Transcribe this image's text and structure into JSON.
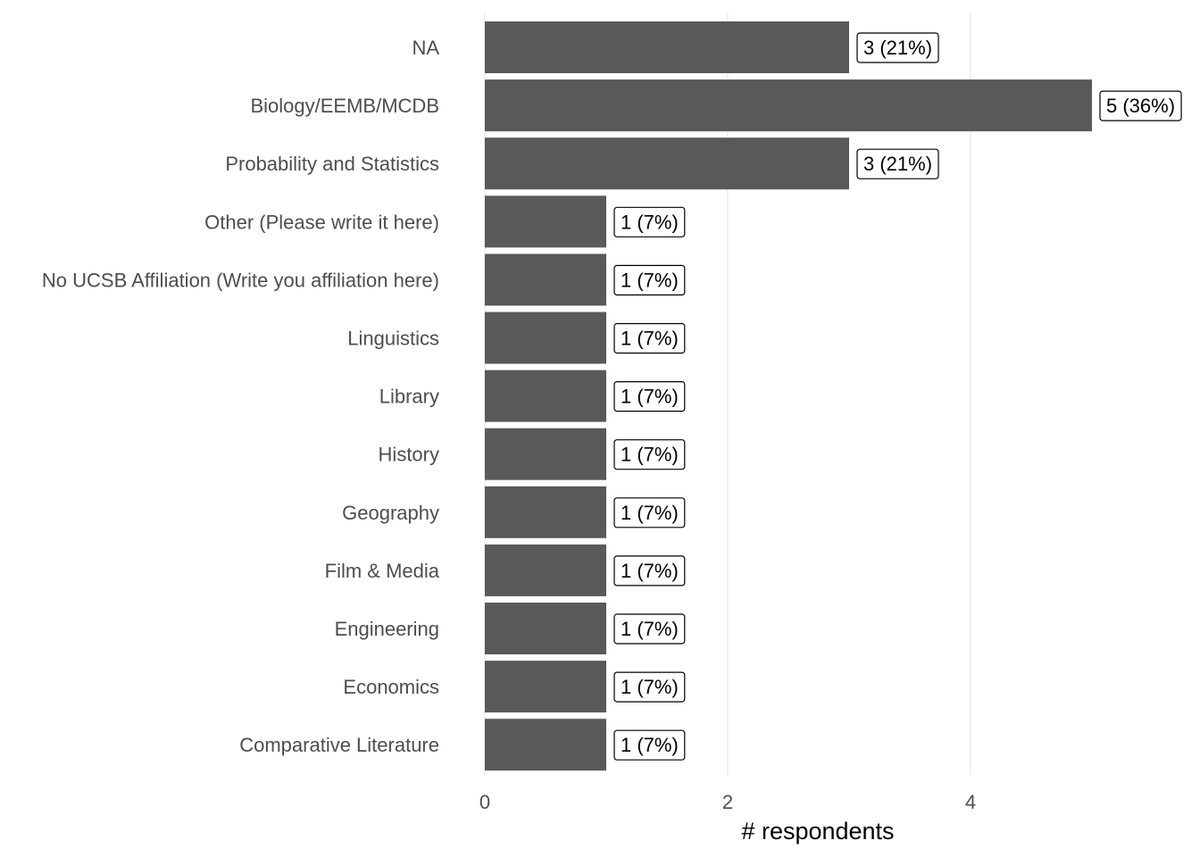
{
  "chart_data": {
    "type": "bar",
    "orientation": "horizontal",
    "categories": [
      "NA",
      "Biology/EEMB/MCDB",
      "Probability and Statistics",
      "Other (Please write it here)",
      "No UCSB Affiliation (Write you affiliation here)",
      "Linguistics",
      "Library",
      "History",
      "Geography",
      "Film & Media",
      "Engineering",
      "Economics",
      "Comparative Literature"
    ],
    "values": [
      3,
      5,
      3,
      1,
      1,
      1,
      1,
      1,
      1,
      1,
      1,
      1,
      1
    ],
    "data_labels": [
      "3 (21%)",
      "5 (36%)",
      "3 (21%)",
      "1 (7%)",
      "1 (7%)",
      "1 (7%)",
      "1 (7%)",
      "1 (7%)",
      "1 (7%)",
      "1 (7%)",
      "1 (7%)",
      "1 (7%)",
      "1 (7%)"
    ],
    "title": "",
    "xlabel": "# respondents",
    "ylabel": "",
    "xlim": [
      0,
      5
    ],
    "xticks": [
      0,
      2,
      4
    ],
    "xtick_labels": [
      "0",
      "2",
      "4"
    ],
    "grid": "vertical major",
    "legend": "none",
    "colors": {
      "bar": "#595959",
      "grid": "#e6e6e6",
      "label_text": "#4d4d4d"
    }
  }
}
